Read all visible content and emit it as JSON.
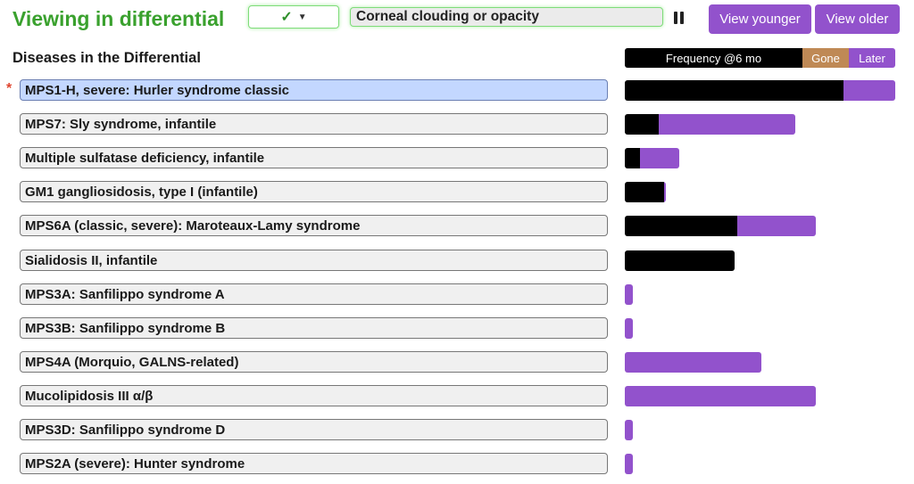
{
  "header": {
    "title": "Viewing in differential",
    "filter_check_icon": "check-icon",
    "symptom": "Corneal clouding or opacity",
    "view_younger_label": "View younger",
    "view_older_label": "View older"
  },
  "section": {
    "title": "Diseases in the Differential"
  },
  "legend": {
    "frequency_label": "Frequency @6 mo",
    "gone_label": "Gone",
    "later_label": "Later"
  },
  "colors": {
    "accent_green": "#3aa12e",
    "purple": "#9252cc",
    "gone_tan": "#bf8955",
    "selected_blue": "#c3d7ff",
    "asterisk_red": "#e0452f"
  },
  "diseases": [
    {
      "name": "MPS1-H, severe: Hurler syndrome classic",
      "selected": true,
      "frequency": 0.81,
      "later": 0.19
    },
    {
      "name": "MPS7: Sly syndrome, infantile",
      "selected": false,
      "frequency": 0.125,
      "later": 0.505
    },
    {
      "name": "Multiple sulfatase deficiency, infantile",
      "selected": false,
      "frequency": 0.055,
      "later": 0.145
    },
    {
      "name": "GM1 gangliosidosis, type I (infantile)",
      "selected": false,
      "frequency": 0.145,
      "later": 0.005
    },
    {
      "name": "MPS6A (classic, severe): Maroteaux-Lamy syndrome",
      "selected": false,
      "frequency": 0.415,
      "later": 0.29
    },
    {
      "name": "Sialidosis II, infantile",
      "selected": false,
      "frequency": 0.405,
      "later": 0.0
    },
    {
      "name": "MPS3A: Sanfilippo syndrome A",
      "selected": false,
      "frequency": 0.0,
      "later": 0.03
    },
    {
      "name": "MPS3B: Sanfilippo syndrome B",
      "selected": false,
      "frequency": 0.0,
      "later": 0.03
    },
    {
      "name": "MPS4A (Morquio, GALNS-related)",
      "selected": false,
      "frequency": 0.0,
      "later": 0.505
    },
    {
      "name": "Mucolipidosis III α/β",
      "selected": false,
      "frequency": 0.0,
      "later": 0.705
    },
    {
      "name": "MPS3D: Sanfilippo syndrome D",
      "selected": false,
      "frequency": 0.0,
      "later": 0.03
    },
    {
      "name": "MPS2A (severe): Hunter syndrome",
      "selected": false,
      "frequency": 0.0,
      "later": 0.03
    }
  ]
}
